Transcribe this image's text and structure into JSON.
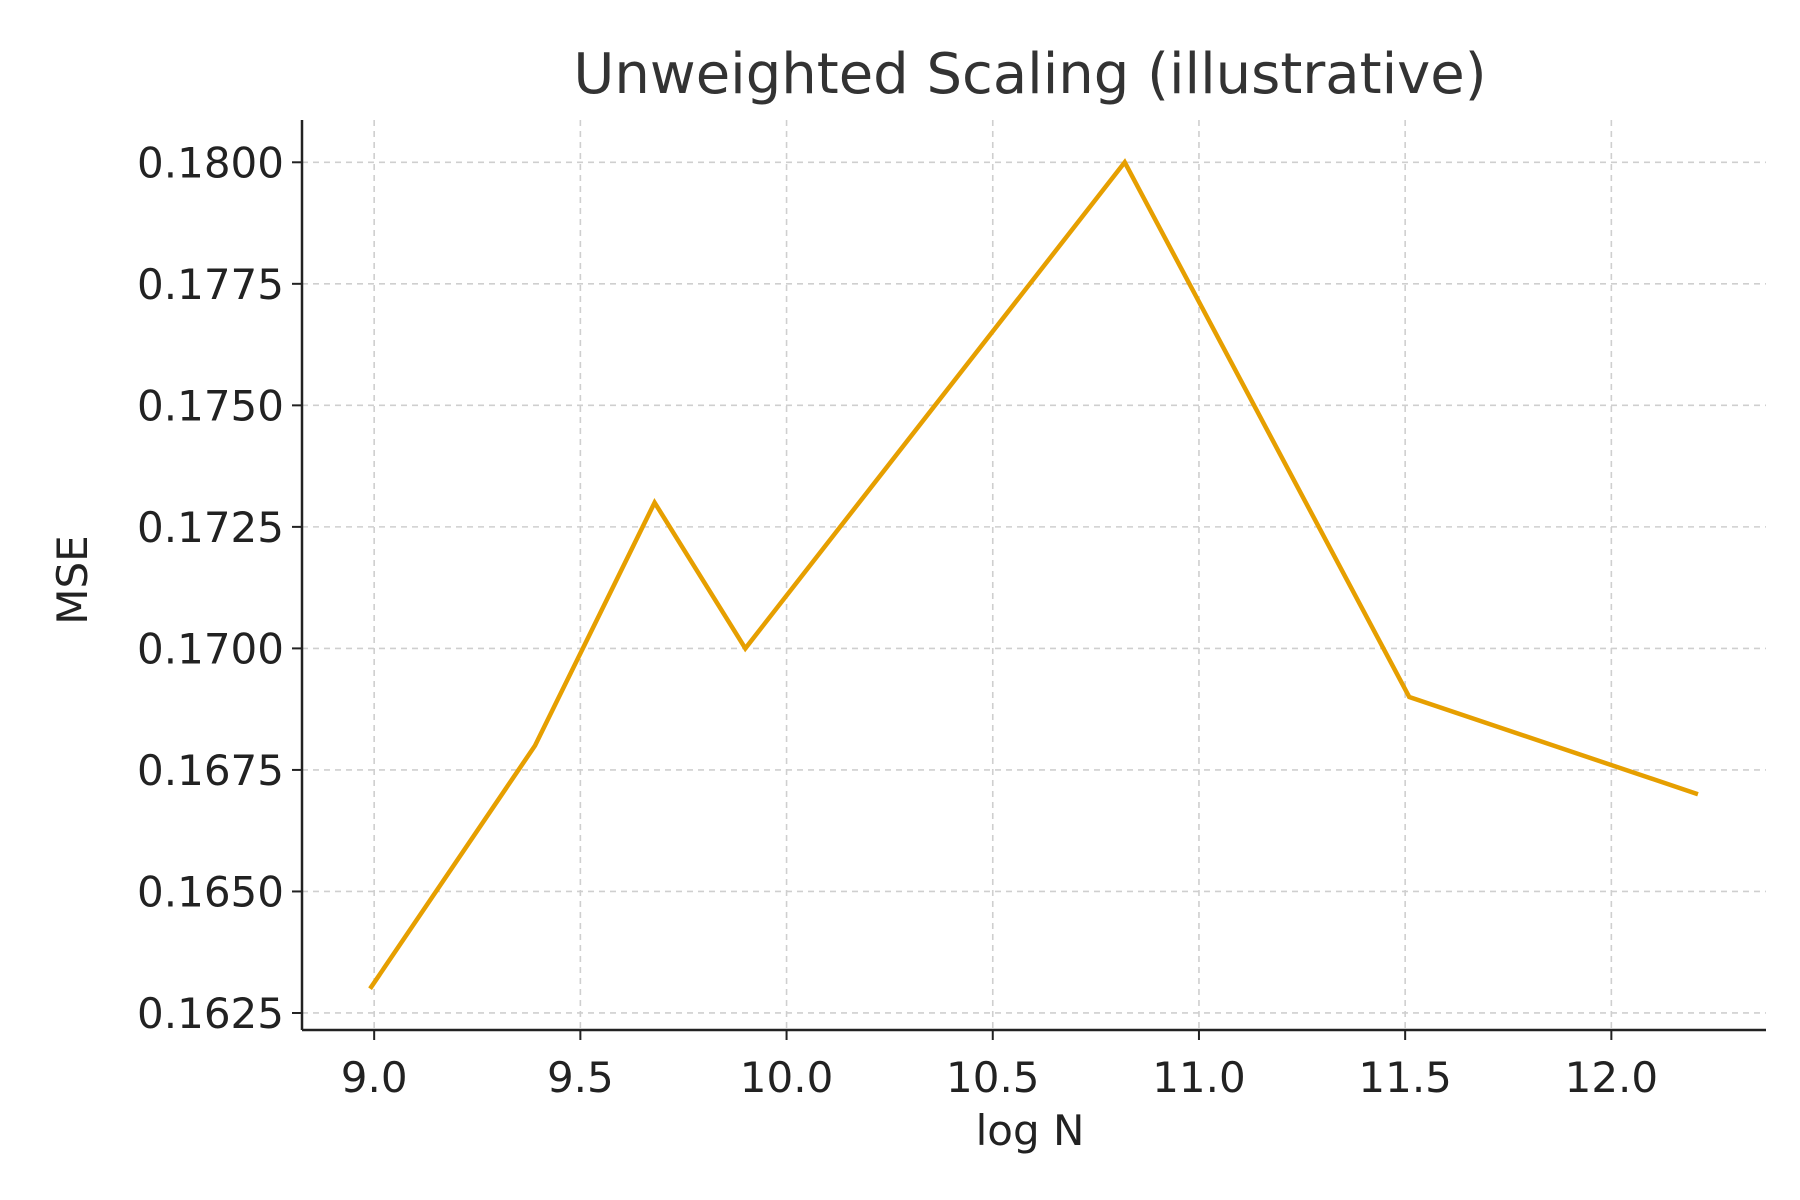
{
  "chart_data": {
    "type": "line",
    "title": "Unweighted Scaling (illustrative)",
    "xlabel": "log N",
    "ylabel": "MSE",
    "xlim": [
      8.825,
      12.375
    ],
    "ylim": [
      0.16215,
      0.18087
    ],
    "xticks": [
      9.0,
      9.5,
      10.0,
      10.5,
      11.0,
      11.5,
      12.0
    ],
    "xtick_labels": [
      "9.0",
      "9.5",
      "10.0",
      "10.5",
      "11.0",
      "11.5",
      "12.0"
    ],
    "yticks": [
      0.1625,
      0.165,
      0.1675,
      0.17,
      0.1725,
      0.175,
      0.1775,
      0.18
    ],
    "ytick_labels": [
      "0.1625",
      "0.1650",
      "0.1675",
      "0.1700",
      "0.1725",
      "0.1750",
      "0.1775",
      "0.1800"
    ],
    "grid": true,
    "series": [
      {
        "color": "#E69F00",
        "x": [
          8.99,
          9.39,
          9.68,
          9.9,
          10.82,
          11.51,
          12.21
        ],
        "y": [
          0.163,
          0.168,
          0.173,
          0.17,
          0.18,
          0.169,
          0.167
        ]
      }
    ]
  }
}
